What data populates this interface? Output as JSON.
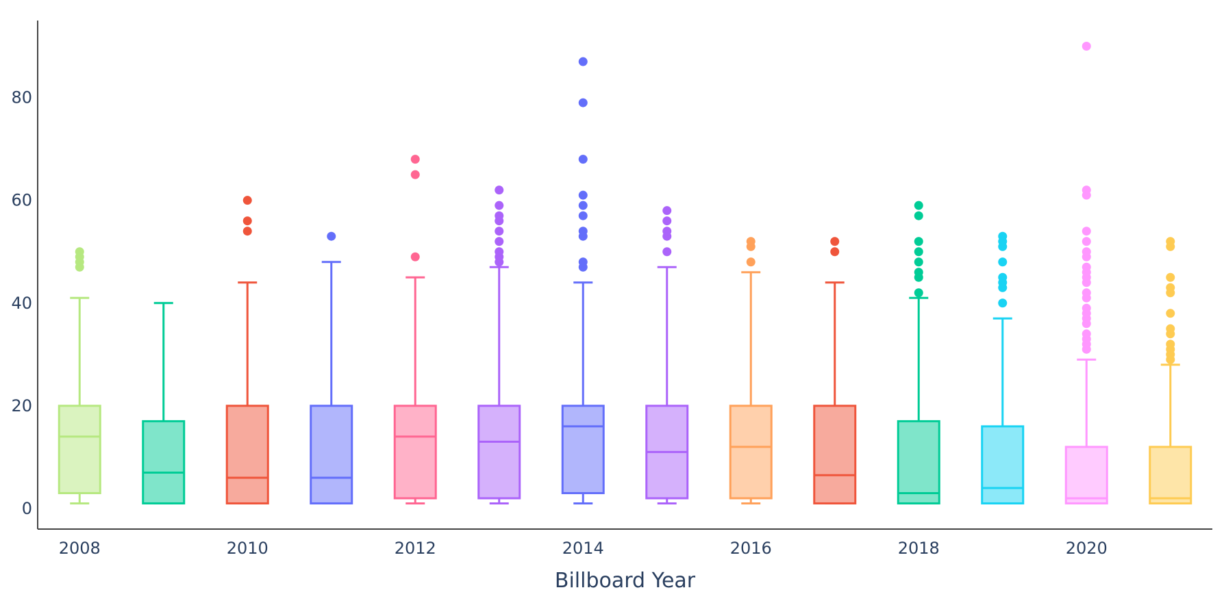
{
  "chart_data": {
    "type": "box",
    "xlabel": "Billboard Year",
    "ylabel": "",
    "title": "",
    "ylim": [
      -4,
      95
    ],
    "xlim": [
      2007.5,
      2021.5
    ],
    "x_ticks": [
      2008,
      2010,
      2012,
      2014,
      2016,
      2018,
      2020
    ],
    "y_ticks": [
      0,
      20,
      40,
      60,
      80
    ],
    "grid": false,
    "legend": "none",
    "series": [
      {
        "x": 2008,
        "color": "#b6e880",
        "min": 1,
        "q1": 3,
        "median": 14,
        "q3": 20,
        "max": 41,
        "outliers": [
          47,
          48,
          49,
          50
        ]
      },
      {
        "x": 2009,
        "color": "#00cc96",
        "min": 1,
        "q1": 1,
        "median": 7,
        "q3": 17,
        "max": 40,
        "outliers": []
      },
      {
        "x": 2010,
        "color": "#ef553b",
        "min": 1,
        "q1": 1,
        "median": 6,
        "q3": 20,
        "max": 44,
        "outliers": [
          54,
          56,
          60
        ]
      },
      {
        "x": 2011,
        "color": "#636efa",
        "min": 1,
        "q1": 1,
        "median": 6,
        "q3": 20,
        "max": 48,
        "outliers": [
          53
        ]
      },
      {
        "x": 2012,
        "color": "#ff6692",
        "min": 1,
        "q1": 2,
        "median": 14,
        "q3": 20,
        "max": 45,
        "outliers": [
          49,
          65,
          68
        ]
      },
      {
        "x": 2013,
        "color": "#ab63fa",
        "min": 1,
        "q1": 2,
        "median": 13,
        "q3": 20,
        "max": 47,
        "outliers": [
          48,
          49,
          50,
          52,
          54,
          56,
          57,
          59,
          62
        ]
      },
      {
        "x": 2014,
        "color": "#636efa",
        "min": 1,
        "q1": 3,
        "median": 16,
        "q3": 20,
        "max": 44,
        "outliers": [
          47,
          48,
          53,
          54,
          57,
          59,
          61,
          68,
          79,
          87
        ]
      },
      {
        "x": 2015,
        "color": "#ab63fa",
        "min": 1,
        "q1": 2,
        "median": 11,
        "q3": 20,
        "max": 47,
        "outliers": [
          50,
          53,
          54,
          56,
          58
        ]
      },
      {
        "x": 2016,
        "color": "#ffa15a",
        "min": 1,
        "q1": 2,
        "median": 12,
        "q3": 20,
        "max": 46,
        "outliers": [
          48,
          51,
          52
        ]
      },
      {
        "x": 2017,
        "color": "#ef553b",
        "min": 1,
        "q1": 1,
        "median": 6.5,
        "q3": 20,
        "max": 44,
        "outliers": [
          50,
          52
        ]
      },
      {
        "x": 2018,
        "color": "#00cc96",
        "min": 1,
        "q1": 1,
        "median": 3,
        "q3": 17,
        "max": 41,
        "outliers": [
          42,
          45,
          46,
          48,
          50,
          52,
          57,
          59
        ]
      },
      {
        "x": 2019,
        "color": "#19d3f3",
        "min": 1,
        "q1": 1,
        "median": 4,
        "q3": 16,
        "max": 37,
        "outliers": [
          40,
          43,
          44,
          45,
          48,
          51,
          52,
          53
        ]
      },
      {
        "x": 2020,
        "color": "#ff97ff",
        "min": 1,
        "q1": 1,
        "median": 2,
        "q3": 12,
        "max": 29,
        "outliers": [
          31,
          32,
          33,
          34,
          36,
          37,
          38,
          39,
          41,
          42,
          44,
          45,
          46,
          47,
          49,
          50,
          52,
          54,
          61,
          62,
          90
        ]
      },
      {
        "x": 2021,
        "color": "#fecb52",
        "min": 1,
        "q1": 1,
        "median": 2,
        "q3": 12,
        "max": 28,
        "outliers": [
          29,
          30,
          31,
          32,
          34,
          35,
          38,
          42,
          43,
          45,
          51,
          52
        ]
      }
    ]
  }
}
